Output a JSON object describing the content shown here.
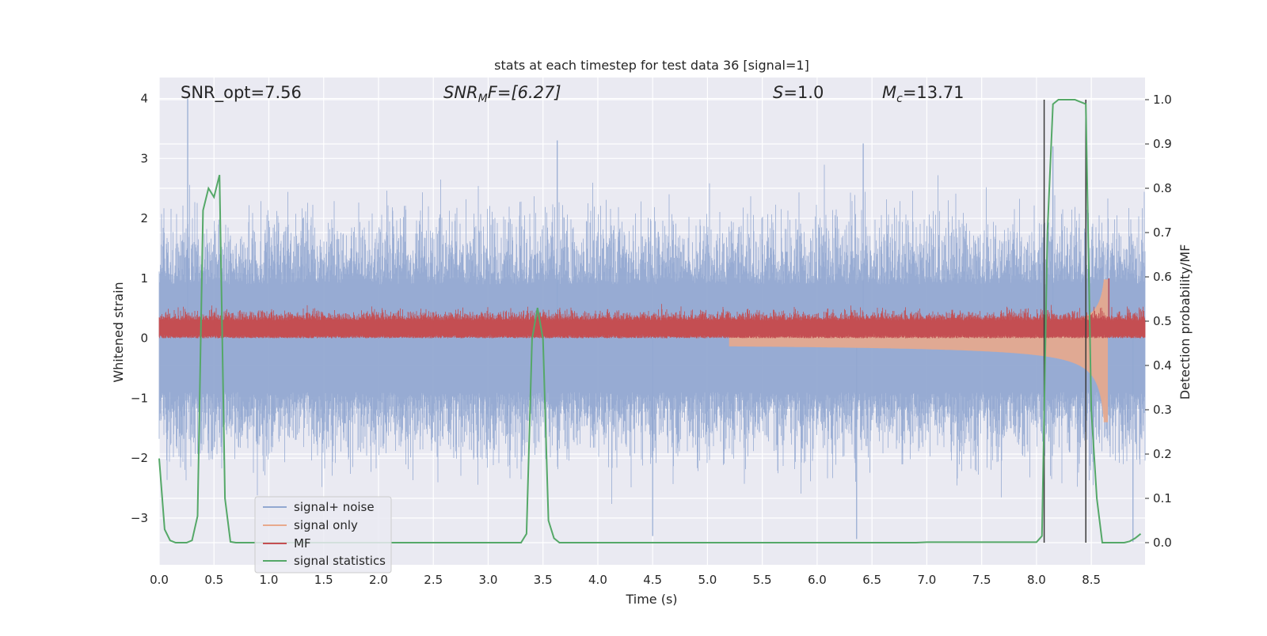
{
  "chart_data": {
    "type": "line",
    "title": "stats at each timestep for test data 36 [signal=1]",
    "xlabel": "Time (s)",
    "ylabel_left": "Whitened strain",
    "ylabel_right": "Detection probability/MF",
    "xlim": [
      0,
      8.99
    ],
    "ylim_left": [
      -3.78,
      4.35
    ],
    "ylim_right": [
      -0.05,
      1.05
    ],
    "xticks": [
      "0.0",
      "0.5",
      "1.0",
      "1.5",
      "2.0",
      "2.5",
      "3.0",
      "3.5",
      "4.0",
      "4.5",
      "5.0",
      "5.5",
      "6.0",
      "6.5",
      "7.0",
      "7.5",
      "8.0",
      "8.5"
    ],
    "yticks_left": [
      "4",
      "3",
      "2",
      "1",
      "0",
      "−1",
      "−2",
      "−3"
    ],
    "yticks_right": [
      "1.0",
      "0.9",
      "0.8",
      "0.7",
      "0.6",
      "0.5",
      "0.4",
      "0.3",
      "0.2",
      "0.1",
      "0.0"
    ],
    "grid": true,
    "legend_position": "lower-left",
    "annotations": {
      "snr_opt": "SNR_opt=7.56",
      "snr_mf_base": "SNR",
      "snr_mf_sub": "M",
      "snr_mf_rest": "F=[6.27]",
      "s_italic": "S",
      "s_rest": "=1.0",
      "mc_base": "M",
      "mc_sub": "c",
      "mc_rest": "=13.71"
    },
    "vertical_lines_x": [
      8.07,
      8.45
    ],
    "series": [
      {
        "name": "signal+ noise",
        "color": "#92a8d1",
        "axis": "left",
        "envelope": {
          "typical_abs": 1.5,
          "max": 4.0,
          "min": -3.45
        }
      },
      {
        "name": "signal only",
        "color": "#e8a98c",
        "axis": "left",
        "envelope": {
          "max": 1.0,
          "min": -1.6,
          "chirp_end": 8.65
        }
      },
      {
        "name": "MF",
        "color": "#c44e52",
        "axis": "left",
        "band": [
          0.0,
          0.3
        ]
      },
      {
        "name": "signal statistics",
        "color": "#55a868",
        "axis": "right",
        "x": [
          0.0,
          0.05,
          0.1,
          0.15,
          0.2,
          0.25,
          0.3,
          0.35,
          0.4,
          0.45,
          0.5,
          0.55,
          0.6,
          0.65,
          0.7,
          0.75,
          0.8,
          3.3,
          3.35,
          3.4,
          3.45,
          3.5,
          3.55,
          3.6,
          3.65,
          3.7,
          6.9,
          7.0,
          8.0,
          8.05,
          8.1,
          8.15,
          8.2,
          8.3,
          8.35,
          8.4,
          8.45,
          8.5,
          8.55,
          8.6,
          8.65,
          8.7,
          8.75,
          8.8,
          8.85,
          8.9,
          8.95
        ],
        "y": [
          0.19,
          0.03,
          0.005,
          0.0,
          0.0,
          0.0,
          0.005,
          0.06,
          0.75,
          0.8,
          0.78,
          0.83,
          0.1,
          0.002,
          0.0,
          0.0,
          0.0,
          0.0,
          0.02,
          0.46,
          0.53,
          0.46,
          0.05,
          0.01,
          0.0,
          0.0,
          0.0,
          0.001,
          0.001,
          0.015,
          0.7,
          0.99,
          1.0,
          1.0,
          1.0,
          0.995,
          0.99,
          0.3,
          0.1,
          0.0,
          0.0,
          0.0,
          0.0,
          0.0,
          0.003,
          0.01,
          0.02
        ]
      }
    ]
  }
}
